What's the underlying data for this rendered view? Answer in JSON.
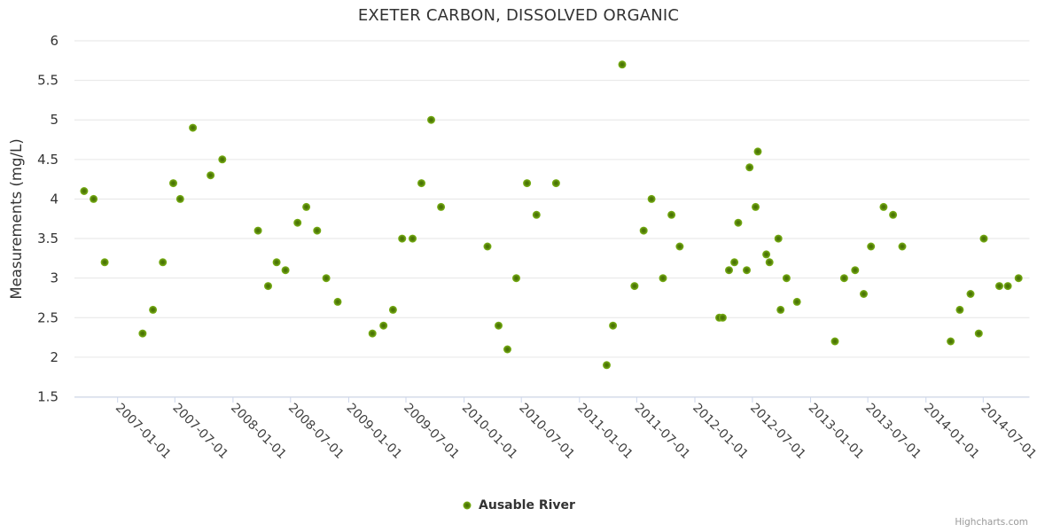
{
  "title": "EXETER CARBON, DISSOLVED ORGANIC",
  "credits": "Highcharts.com",
  "legend": {
    "series_label": "Ausable River"
  },
  "colors": {
    "title_text": "#333333",
    "axis_label_text": "#3f3f3f",
    "grid_line": "#e6e6e6",
    "axis_line": "#ccd6eb",
    "marker_edge": "#7fb71a",
    "marker_center": "#446f04",
    "credits_text": "#999999"
  },
  "chart_data": {
    "type": "scatter",
    "title": "EXETER CARBON, DISSOLVED ORGANIC",
    "xlabel": "",
    "ylabel": "Measurements (mg/L)",
    "ylim": [
      1.5,
      6
    ],
    "yticks": [
      1.5,
      2,
      2.5,
      3,
      3.5,
      4,
      4.5,
      5,
      5.5,
      6
    ],
    "xtick_labels": [
      "2007-01-01",
      "2007-07-01",
      "2008-01-01",
      "2008-07-01",
      "2009-01-01",
      "2009-07-01",
      "2010-01-01",
      "2010-07-01",
      "2011-01-01",
      "2011-07-01",
      "2012-01-01",
      "2012-07-01",
      "2013-01-01",
      "2013-07-01",
      "2014-01-01",
      "2014-07-01"
    ],
    "grid": true,
    "legend_position": "bottom-center",
    "series": [
      {
        "name": "Ausable River",
        "color": "#7fb71a",
        "points": [
          [
            "2006-09-17",
            4.1
          ],
          [
            "2006-10-17",
            4.0
          ],
          [
            "2006-11-21",
            3.2
          ],
          [
            "2007-03-21",
            2.3
          ],
          [
            "2007-04-23",
            2.6
          ],
          [
            "2007-05-24",
            3.2
          ],
          [
            "2007-06-26",
            4.2
          ],
          [
            "2007-07-18",
            4.0
          ],
          [
            "2007-08-27",
            4.9
          ],
          [
            "2007-10-22",
            4.3
          ],
          [
            "2007-11-28",
            4.5
          ],
          [
            "2008-03-20",
            3.6
          ],
          [
            "2008-04-21",
            2.9
          ],
          [
            "2008-05-18",
            3.2
          ],
          [
            "2008-06-15",
            3.1
          ],
          [
            "2008-07-23",
            3.7
          ],
          [
            "2008-08-20",
            3.9
          ],
          [
            "2008-09-23",
            3.6
          ],
          [
            "2008-10-22",
            3.0
          ],
          [
            "2008-11-27",
            2.7
          ],
          [
            "2009-03-17",
            2.3
          ],
          [
            "2009-04-21",
            2.4
          ],
          [
            "2009-05-21",
            2.6
          ],
          [
            "2009-06-19",
            3.5
          ],
          [
            "2009-07-22",
            3.5
          ],
          [
            "2009-08-19",
            4.2
          ],
          [
            "2009-09-19",
            5.0
          ],
          [
            "2009-10-20",
            3.9
          ],
          [
            "2010-03-16",
            3.4
          ],
          [
            "2010-04-20",
            2.4
          ],
          [
            "2010-05-18",
            2.1
          ],
          [
            "2010-06-15",
            3.0
          ],
          [
            "2010-07-19",
            4.2
          ],
          [
            "2010-08-18",
            3.8
          ],
          [
            "2010-10-19",
            4.2
          ],
          [
            "2011-03-28",
            1.9
          ],
          [
            "2011-04-17",
            2.4
          ],
          [
            "2011-05-16",
            5.7
          ],
          [
            "2011-06-24",
            2.9
          ],
          [
            "2011-07-23",
            3.6
          ],
          [
            "2011-08-17",
            4.0
          ],
          [
            "2011-09-22",
            3.0
          ],
          [
            "2011-10-19",
            3.8
          ],
          [
            "2011-11-14",
            3.4
          ],
          [
            "2012-03-18",
            2.5
          ],
          [
            "2012-03-29",
            2.5
          ],
          [
            "2012-04-18",
            3.1
          ],
          [
            "2012-05-05",
            3.2
          ],
          [
            "2012-05-17",
            3.7
          ],
          [
            "2012-06-13",
            3.1
          ],
          [
            "2012-06-22",
            4.4
          ],
          [
            "2012-07-11",
            3.9
          ],
          [
            "2012-07-18",
            4.6
          ],
          [
            "2012-08-14",
            3.3
          ],
          [
            "2012-08-24",
            3.2
          ],
          [
            "2012-09-21",
            3.5
          ],
          [
            "2012-09-28",
            2.6
          ],
          [
            "2012-10-17",
            3.0
          ],
          [
            "2012-11-19",
            2.7
          ],
          [
            "2013-03-19",
            2.2
          ],
          [
            "2013-04-17",
            3.0
          ],
          [
            "2013-05-22",
            3.1
          ],
          [
            "2013-06-18",
            2.8
          ],
          [
            "2013-07-11",
            3.4
          ],
          [
            "2013-08-20",
            3.9
          ],
          [
            "2013-09-19",
            3.8
          ],
          [
            "2013-10-18",
            3.4
          ],
          [
            "2014-03-20",
            2.2
          ],
          [
            "2014-04-18",
            2.6
          ],
          [
            "2014-05-22",
            2.8
          ],
          [
            "2014-06-17",
            2.3
          ],
          [
            "2014-07-03",
            3.5
          ],
          [
            "2014-08-21",
            2.9
          ],
          [
            "2014-09-17",
            2.9
          ],
          [
            "2014-10-21",
            3.0
          ]
        ]
      }
    ]
  }
}
